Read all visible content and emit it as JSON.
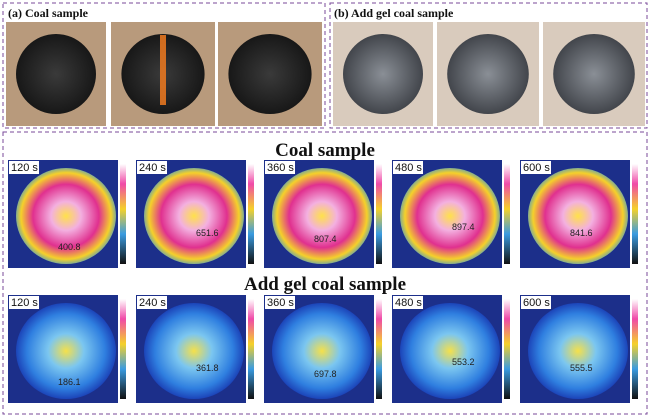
{
  "panel_a": {
    "label": "(a) Coal sample"
  },
  "panel_b": {
    "label": "(b) Add gel coal sample"
  },
  "coal": {
    "title": "Coal sample",
    "images": [
      {
        "time": "120 s",
        "temp": "400.8"
      },
      {
        "time": "240 s",
        "temp": "651.6"
      },
      {
        "time": "360 s",
        "temp": "807.4"
      },
      {
        "time": "480 s",
        "temp": "897.4"
      },
      {
        "time": "600 s",
        "temp": "841.6"
      }
    ]
  },
  "gel": {
    "title": "Add gel coal sample",
    "images": [
      {
        "time": "120 s",
        "temp": "186.1"
      },
      {
        "time": "240 s",
        "temp": "361.8"
      },
      {
        "time": "360 s",
        "temp": "697.8"
      },
      {
        "time": "480 s",
        "temp": "553.2"
      },
      {
        "time": "600 s",
        "temp": "555.5"
      }
    ]
  }
}
